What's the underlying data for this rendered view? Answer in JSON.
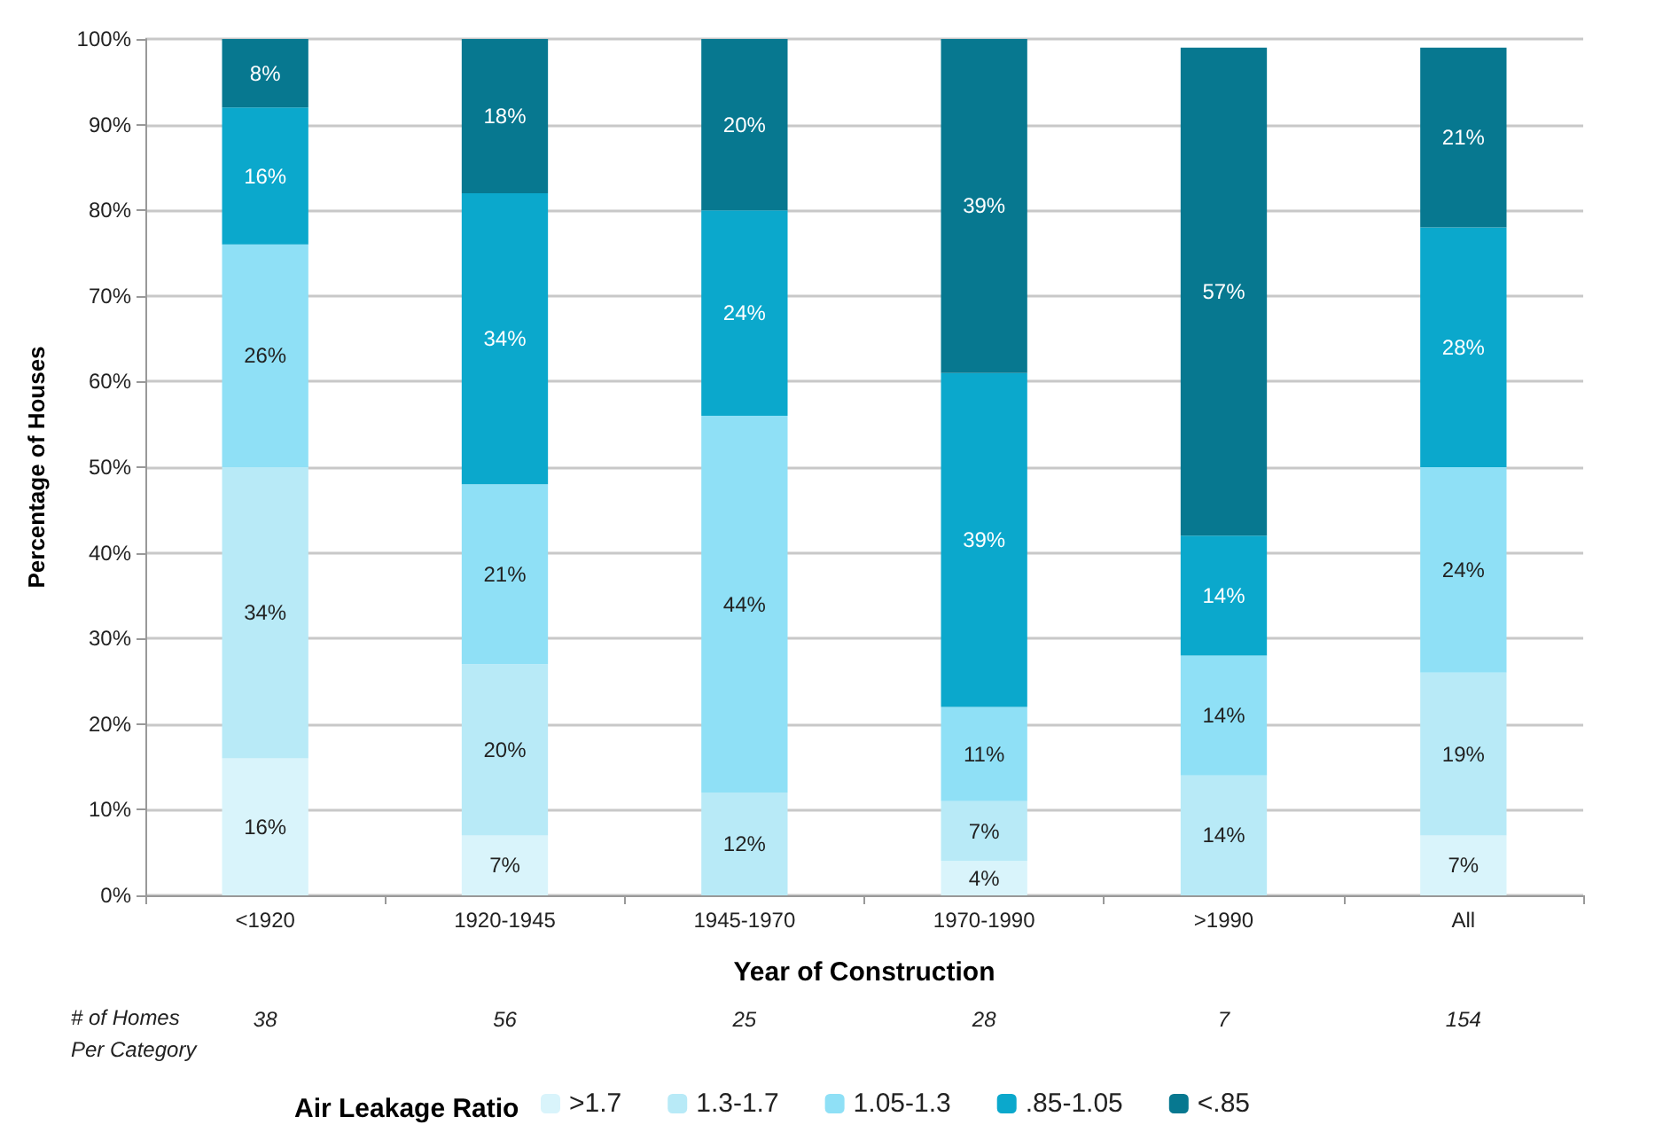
{
  "chart_data": {
    "type": "bar",
    "stacked": true,
    "xlabel": "Year of Construction",
    "ylabel": "Percentage of Houses",
    "legend_title": "Air Leakage Ratio",
    "legend": "bottom",
    "grid": "y",
    "categories": [
      "<1920",
      "1920-1945",
      "1945-1970",
      "1970-1990",
      ">1990",
      "All"
    ],
    "ylim": [
      0,
      100
    ],
    "yticks": [
      {
        "value": 0,
        "label": "0%"
      },
      {
        "value": 10,
        "label": "10%"
      },
      {
        "value": 20,
        "label": "20%"
      },
      {
        "value": 30,
        "label": "30%"
      },
      {
        "value": 40,
        "label": "40%"
      },
      {
        "value": 50,
        "label": "50%"
      },
      {
        "value": 60,
        "label": "60%"
      },
      {
        "value": 70,
        "label": "70%"
      },
      {
        "value": 80,
        "label": "80%"
      },
      {
        "value": 90,
        "label": "90%"
      },
      {
        "value": 100,
        "label": "100%"
      }
    ],
    "series": [
      {
        "name": ">1.7",
        "color": "#d9f4fb",
        "values": [
          16,
          7,
          0,
          4,
          0,
          7
        ],
        "value_labels": [
          "16%",
          "7%",
          null,
          "4%",
          null,
          "7%"
        ]
      },
      {
        "name": "1.3-1.7",
        "color": "#b8eaf7",
        "values": [
          34,
          20,
          12,
          7,
          14,
          19
        ],
        "value_labels": [
          "34%",
          "20%",
          "12%",
          "7%",
          "14%",
          "19%"
        ]
      },
      {
        "name": "1.05-1.3",
        "color": "#8fe0f6",
        "values": [
          26,
          21,
          44,
          11,
          14,
          24
        ],
        "value_labels": [
          "26%",
          "21%",
          "44%",
          "11%",
          "14%",
          "24%"
        ]
      },
      {
        "name": ".85-1.05",
        "color": "#0ba8cc",
        "values": [
          16,
          34,
          24,
          39,
          14,
          28
        ],
        "value_labels": [
          "16%",
          "34%",
          "24%",
          "39%",
          "14%",
          "28%"
        ]
      },
      {
        "name": "<.85",
        "color": "#077890",
        "values": [
          8,
          18,
          20,
          39,
          57,
          21
        ],
        "value_labels": [
          "8%",
          "18%",
          "20%",
          "39%",
          "57%",
          "21%"
        ]
      }
    ],
    "annotations": [
      "# of Homes Per Category",
      "38",
      "56",
      "25",
      "28",
      "7",
      "154"
    ]
  }
}
